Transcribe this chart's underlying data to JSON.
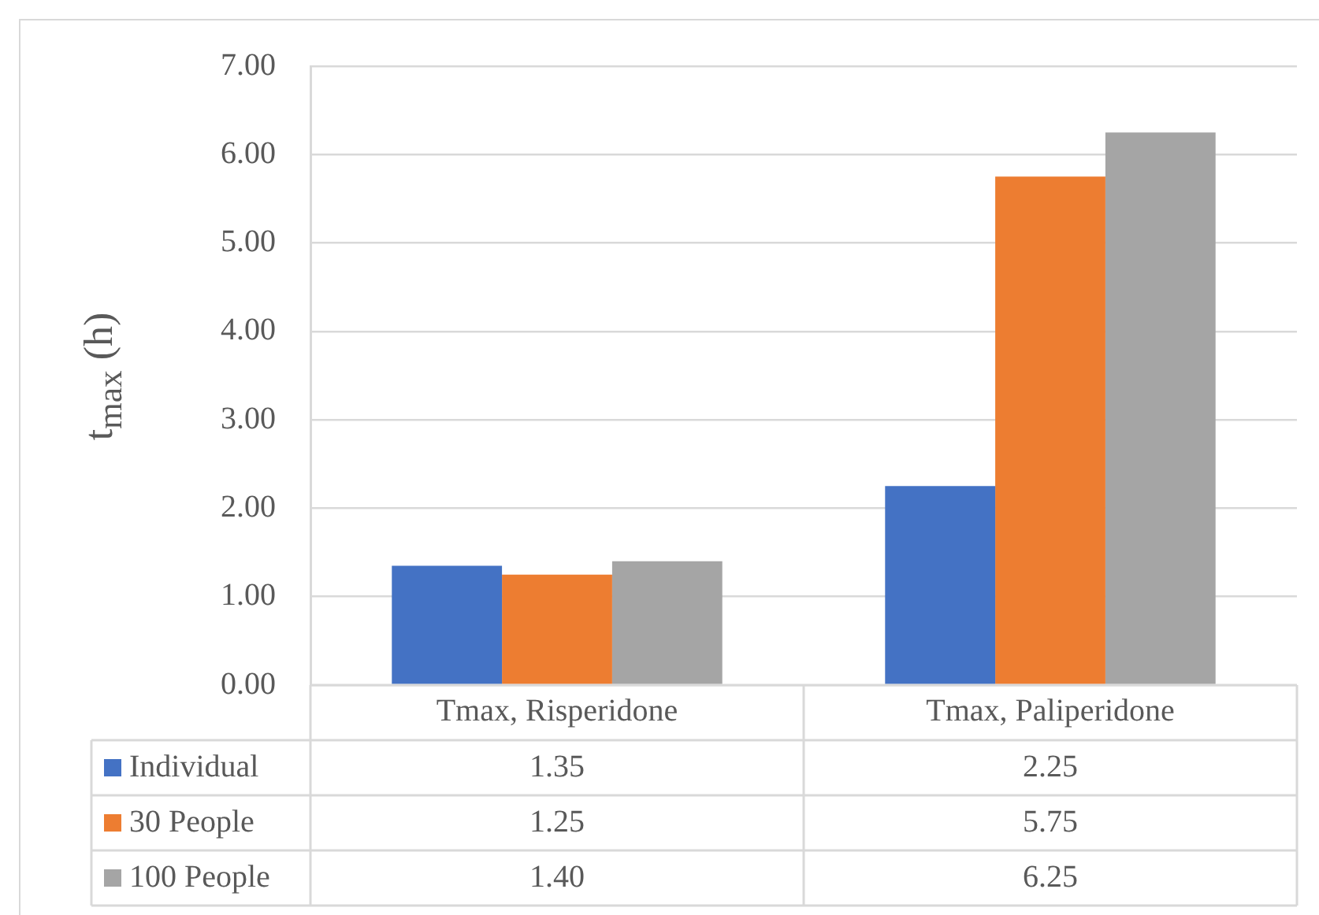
{
  "chart_data": {
    "type": "bar",
    "ylabel": "t$_{max}$ (h)",
    "categories": [
      "Tmax, Risperidone",
      "Tmax, Paliperidone"
    ],
    "series": [
      {
        "name": "Individual",
        "color": "#4472c4",
        "values": [
          1.35,
          2.25
        ],
        "value_labels": [
          "1.35",
          "2.25"
        ]
      },
      {
        "name": "30 People",
        "color": "#ed7d31",
        "values": [
          1.25,
          5.75
        ],
        "value_labels": [
          "1.25",
          "5.75"
        ]
      },
      {
        "name": "100 People",
        "color": "#a5a5a5",
        "values": [
          1.4,
          6.25
        ],
        "value_labels": [
          "1.40",
          "6.25"
        ]
      }
    ],
    "ylim": [
      0,
      7
    ],
    "yticks": [
      {
        "value": 0,
        "label": "0.00"
      },
      {
        "value": 1,
        "label": "1.00"
      },
      {
        "value": 2,
        "label": "2.00"
      },
      {
        "value": 3,
        "label": "3.00"
      },
      {
        "value": 4,
        "label": "4.00"
      },
      {
        "value": 5,
        "label": "5.00"
      },
      {
        "value": 6,
        "label": "6.00"
      },
      {
        "value": 7,
        "label": "7.00"
      }
    ],
    "grid": "y",
    "legend": "bottom"
  }
}
